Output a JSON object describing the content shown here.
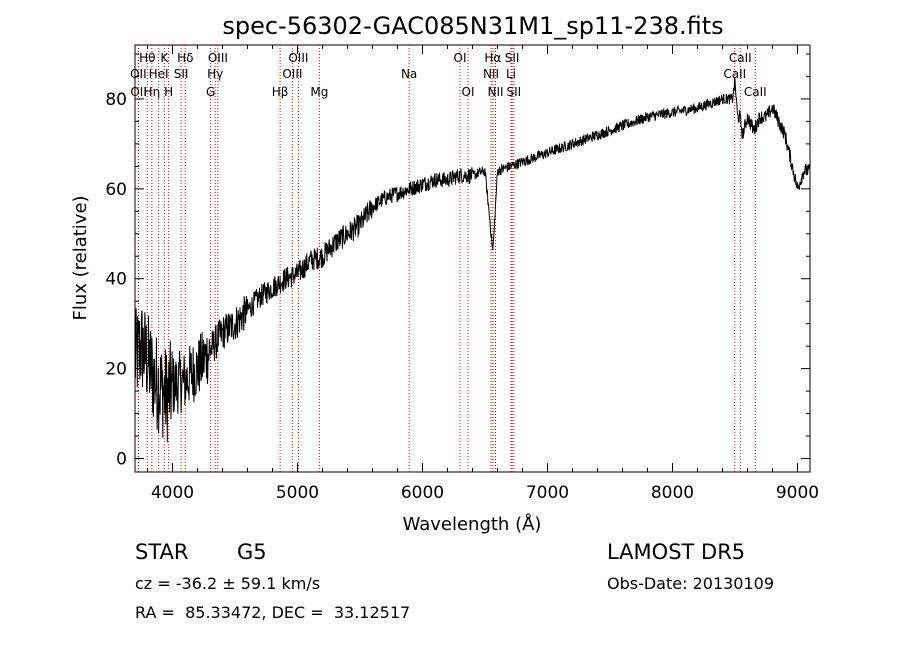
{
  "chart_data": {
    "type": "line",
    "title": "spec-56302-GAC085N31M1_sp11-238.fits",
    "xlabel": "Wavelength (Å)",
    "ylabel": "Flux (relative)",
    "xlim": [
      3700,
      9100
    ],
    "ylim": [
      -3,
      92
    ],
    "x_ticks": [
      4000,
      5000,
      6000,
      7000,
      8000,
      9000
    ],
    "y_ticks": [
      0,
      20,
      40,
      60,
      80
    ],
    "grid": false,
    "line_color": "#000000",
    "marker_color": "#cc0000",
    "spectrum_envelope": {
      "x": [
        3700,
        3750,
        3800,
        3850,
        3900,
        3950,
        4000,
        4050,
        4100,
        4150,
        4200,
        4250,
        4300,
        4400,
        4500,
        4600,
        4700,
        4800,
        4900,
        5000,
        5100,
        5200,
        5300,
        5400,
        5500,
        5600,
        5700,
        5800,
        5900,
        6000,
        6100,
        6200,
        6300,
        6400,
        6500,
        6563,
        6600,
        6700,
        6800,
        6900,
        7000,
        7200,
        7400,
        7600,
        7800,
        8000,
        8200,
        8400,
        8480,
        8500,
        8520,
        8540,
        8560,
        8600,
        8650,
        8700,
        8750,
        8800,
        8850,
        8900,
        8950,
        9000,
        9050,
        9100
      ],
      "y": [
        22,
        25,
        22,
        18,
        16,
        14,
        16,
        17,
        17,
        19,
        20,
        22,
        24,
        28,
        30,
        33,
        36,
        38,
        40,
        41,
        44,
        45,
        48,
        50,
        52,
        56,
        58,
        59,
        60,
        61,
        62,
        62,
        63,
        63,
        64,
        46,
        64,
        65,
        66,
        67,
        68,
        70,
        72,
        74,
        76,
        77,
        78,
        80,
        80,
        84,
        76,
        76,
        72,
        76,
        73,
        76,
        76,
        78,
        75,
        72,
        66,
        60,
        64,
        64
      ]
    },
    "line_markers": [
      {
        "label": "Hθ",
        "x": 3798,
        "row": 1
      },
      {
        "label": "Hη",
        "x": 3835,
        "row": 3
      },
      {
        "label": "OII",
        "x": 3727,
        "row": 2
      },
      {
        "label": "OII",
        "x": 3729,
        "row": 3
      },
      {
        "label": "HeI",
        "x": 3889,
        "row": 2
      },
      {
        "label": "K",
        "x": 3934,
        "row": 1
      },
      {
        "label": "H",
        "x": 3969,
        "row": 3
      },
      {
        "label": "Hδ",
        "x": 4102,
        "row": 1
      },
      {
        "label": "SII",
        "x": 4069,
        "row": 2
      },
      {
        "label": "OIII",
        "x": 4363,
        "row": 1
      },
      {
        "label": "Hγ",
        "x": 4341,
        "row": 2
      },
      {
        "label": "G",
        "x": 4305,
        "row": 3
      },
      {
        "label": "Hβ",
        "x": 4861,
        "row": 3
      },
      {
        "label": "OIII",
        "x": 5007,
        "row": 1
      },
      {
        "label": "OIII",
        "x": 4959,
        "row": 2
      },
      {
        "label": "Mg",
        "x": 5175,
        "row": 3
      },
      {
        "label": "Na",
        "x": 5893,
        "row": 2
      },
      {
        "label": "OI",
        "x": 6300,
        "row": 1
      },
      {
        "label": "OI",
        "x": 6364,
        "row": 3
      },
      {
        "label": "Hα",
        "x": 6563,
        "row": 1
      },
      {
        "label": "NII",
        "x": 6548,
        "row": 2
      },
      {
        "label": "NII",
        "x": 6584,
        "row": 3
      },
      {
        "label": "SII",
        "x": 6717,
        "row": 1
      },
      {
        "label": "Li",
        "x": 6708,
        "row": 2
      },
      {
        "label": "SII",
        "x": 6731,
        "row": 3
      },
      {
        "label": "CaII",
        "x": 8542,
        "row": 1
      },
      {
        "label": "CaII",
        "x": 8498,
        "row": 2
      },
      {
        "label": "CaII",
        "x": 8662,
        "row": 3
      }
    ]
  },
  "footer": {
    "class_label": "STAR",
    "subclass": "G5",
    "survey": "LAMOST DR5",
    "redshift": "cz = -36.2 ± 59.1 km/s",
    "obs_date": "Obs-Date: 20130109",
    "coords": "RA =  85.33472, DEC =  33.12517"
  }
}
